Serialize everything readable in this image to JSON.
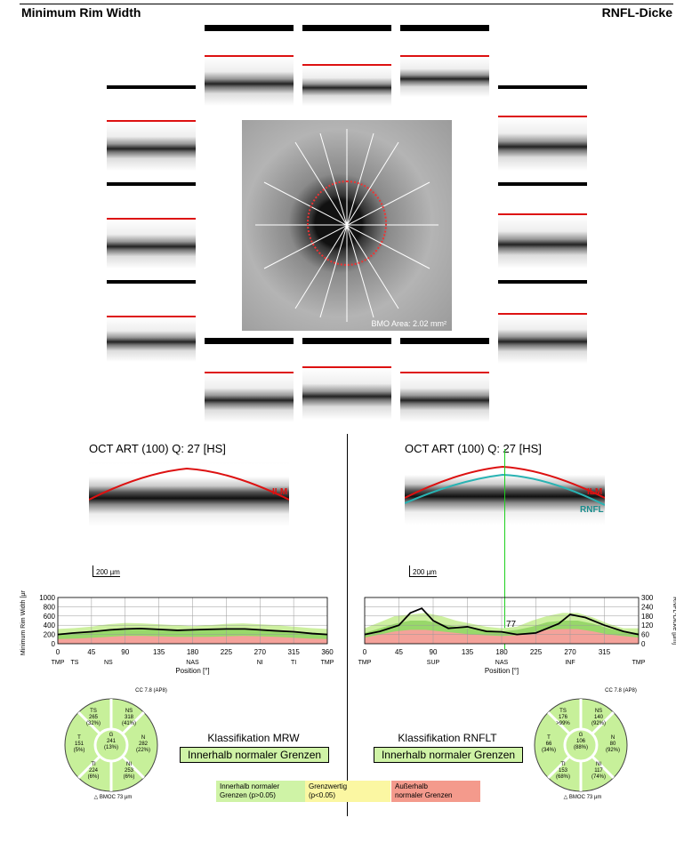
{
  "header": {
    "left_title": "Minimum Rim Width",
    "right_title": "RNFL-Dicke"
  },
  "fundus": {
    "bmo_label": "BMO Area: 2.02 mm²"
  },
  "oct_left": {
    "title": "OCT ART (100) Q: 27 [HS]",
    "ilm_label": "ILM",
    "scale": "200 µm"
  },
  "oct_right": {
    "title": "OCT ART (100) Q: 27 [HS]",
    "ilm_label": "ILM",
    "rnfl_label": "RNFL",
    "scale": "200 µm"
  },
  "chart_data": [
    {
      "type": "line",
      "ylabel": "Minimum Rim Width [µm]",
      "xlabel": "Position [°]",
      "ylim": [
        0,
        1000
      ],
      "yticks": [
        0,
        200,
        400,
        600,
        800,
        1000
      ],
      "xticks": [
        0,
        45,
        90,
        135,
        180,
        225,
        270,
        315,
        360
      ],
      "region_labels": [
        "TMP",
        "TS",
        "NS",
        "NAS",
        "NI",
        "TI",
        "TMP"
      ],
      "series": [
        {
          "x": [
            0,
            20,
            45,
            70,
            90,
            110,
            135,
            160,
            180,
            200,
            225,
            250,
            270,
            290,
            315,
            340,
            360
          ],
          "values": [
            200,
            230,
            260,
            300,
            320,
            330,
            310,
            290,
            300,
            310,
            320,
            320,
            300,
            280,
            260,
            220,
            200
          ]
        }
      ]
    },
    {
      "type": "line",
      "ylabel": "RNFL-Dicke [µm]",
      "xlabel": "Position [°]",
      "ylim": [
        0,
        300
      ],
      "yticks": [
        0,
        60,
        120,
        180,
        240,
        300
      ],
      "xticks": [
        0,
        45,
        90,
        135,
        180,
        225,
        270,
        315
      ],
      "region_labels": [
        "TMP",
        "SUP",
        "NAS",
        "INF",
        "TMP"
      ],
      "marker_value": "77",
      "series": [
        {
          "x": [
            0,
            20,
            45,
            60,
            75,
            90,
            110,
            135,
            160,
            180,
            200,
            225,
            240,
            255,
            270,
            290,
            315,
            340,
            360
          ],
          "values": [
            60,
            80,
            120,
            200,
            230,
            150,
            100,
            110,
            80,
            77,
            60,
            70,
            100,
            130,
            190,
            170,
            120,
            80,
            60
          ]
        }
      ]
    }
  ],
  "sectors_mrw": {
    "header": "CC 7.8 (AP8)",
    "footer": "△ BMOC 73 µm",
    "cells": [
      {
        "k": "TS",
        "v": "265",
        "p": "(32%)"
      },
      {
        "k": "NS",
        "v": "318",
        "p": "(41%)"
      },
      {
        "k": "T",
        "v": "151",
        "p": "(5%)"
      },
      {
        "k": "G",
        "v": "241",
        "p": "(13%)"
      },
      {
        "k": "N",
        "v": "282",
        "p": "(22%)"
      },
      {
        "k": "TI",
        "v": "224",
        "p": "(6%)"
      },
      {
        "k": "NI",
        "v": "253",
        "p": "(6%)"
      }
    ]
  },
  "sectors_rnfl": {
    "header": "CC 7.8 (AP8)",
    "footer": "△ BMOC 73 µm",
    "cells": [
      {
        "k": "TS",
        "v": "176",
        "p": ">99%"
      },
      {
        "k": "NS",
        "v": "140",
        "p": "(92%)"
      },
      {
        "k": "T",
        "v": "66",
        "p": "(34%)"
      },
      {
        "k": "G",
        "v": "106",
        "p": "(88%)"
      },
      {
        "k": "N",
        "v": "80",
        "p": "(92%)"
      },
      {
        "k": "TI",
        "v": "153",
        "p": "(68%)"
      },
      {
        "k": "NI",
        "v": "117",
        "p": "(74%)"
      }
    ]
  },
  "klass_mrw": {
    "title": "Klassifikation MRW",
    "result": "Innerhalb normaler Grenzen"
  },
  "klass_rnfl": {
    "title": "Klassifikation RNFLT",
    "result": "Innerhalb normaler Grenzen"
  },
  "legend": [
    {
      "line1": "Innerhalb normaler",
      "line2": "Grenzen (p>0.05)",
      "color": "#cff3a6"
    },
    {
      "line1": "Grenzwertig",
      "line2": "(p<0.05)",
      "color": "#fbf7a2"
    },
    {
      "line1": "Außerhalb",
      "line2": "normaler Grenzen",
      "color": "#f49a8c"
    }
  ]
}
